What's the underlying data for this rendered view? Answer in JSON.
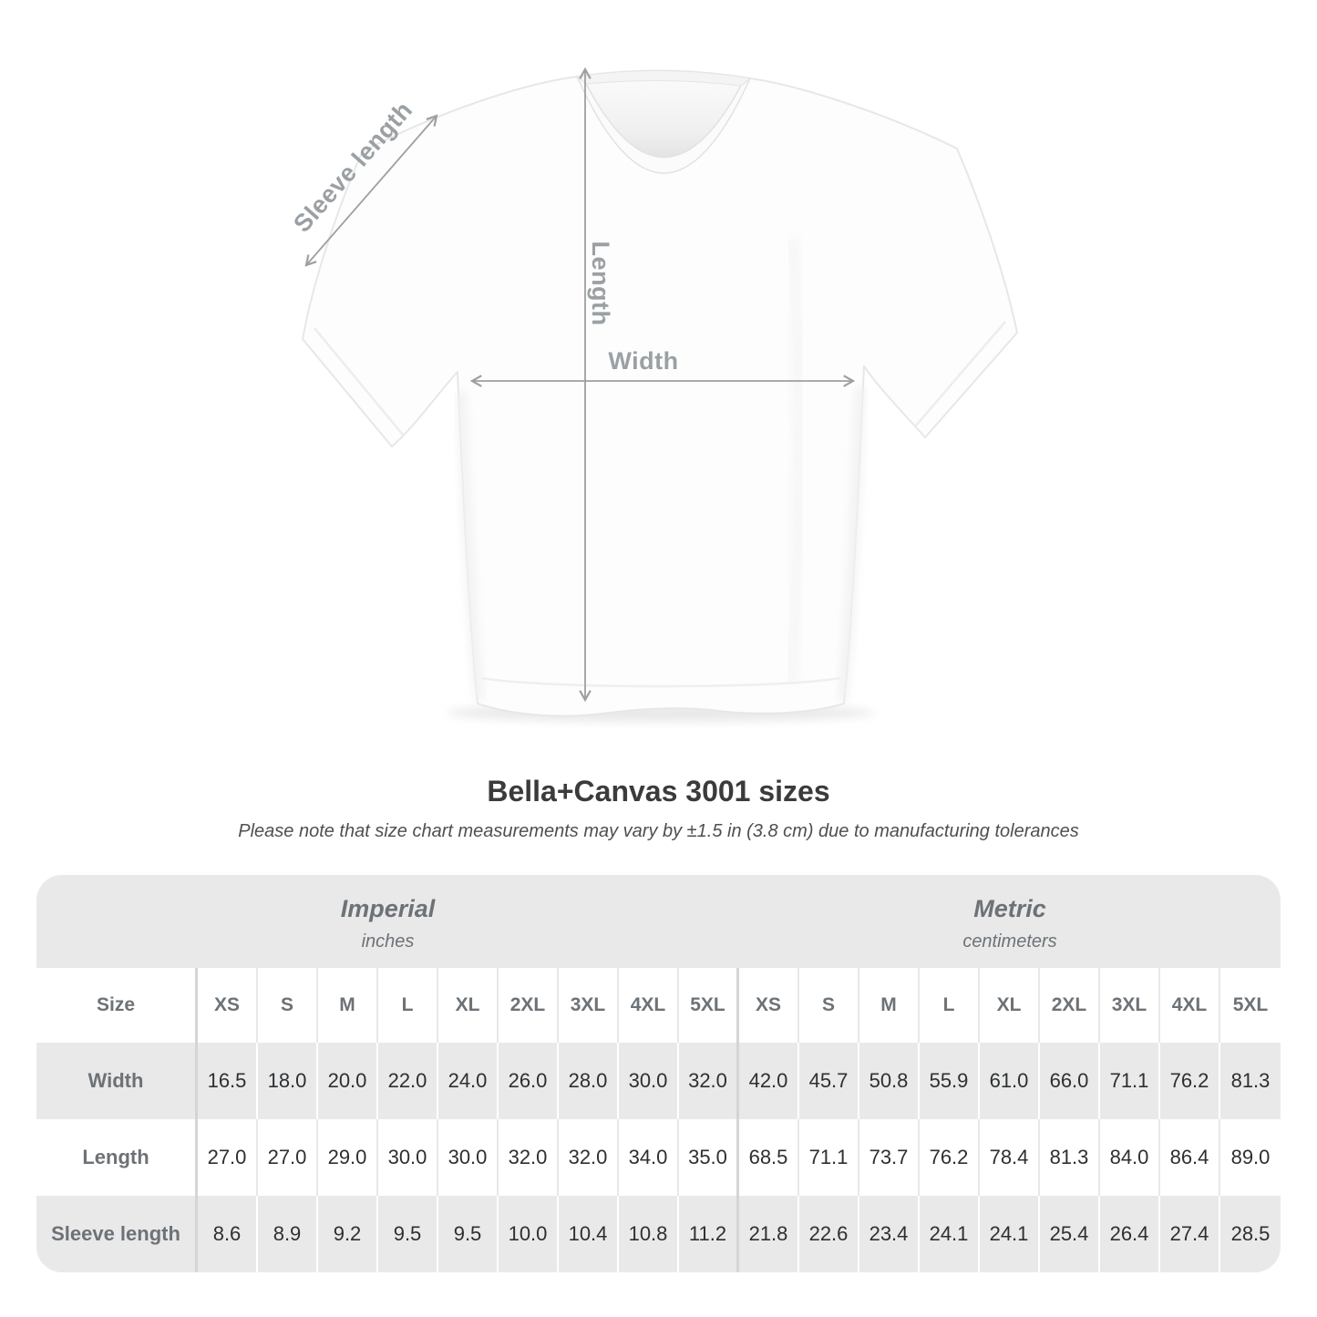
{
  "diagram": {
    "sleeve_label": "Sleeve length",
    "length_label": "Length",
    "width_label": "Width"
  },
  "heading": {
    "title": "Bella+Canvas 3001 sizes",
    "note": "Please note that size chart measurements may vary by ±1.5 in (3.8 cm) due to manufacturing tolerances"
  },
  "table": {
    "size_header": "Size",
    "groups": [
      {
        "label": "Imperial",
        "unit": "inches"
      },
      {
        "label": "Metric",
        "unit": "centimeters"
      }
    ],
    "sizes": [
      "XS",
      "S",
      "M",
      "L",
      "XL",
      "2XL",
      "3XL",
      "4XL",
      "5XL"
    ],
    "rows": [
      {
        "label": "Width",
        "imperial": [
          "16.5",
          "18.0",
          "20.0",
          "22.0",
          "24.0",
          "26.0",
          "28.0",
          "30.0",
          "32.0"
        ],
        "metric": [
          "42.0",
          "45.7",
          "50.8",
          "55.9",
          "61.0",
          "66.0",
          "71.1",
          "76.2",
          "81.3"
        ]
      },
      {
        "label": "Length",
        "imperial": [
          "27.0",
          "27.0",
          "29.0",
          "30.0",
          "30.0",
          "32.0",
          "32.0",
          "34.0",
          "35.0"
        ],
        "metric": [
          "68.5",
          "71.1",
          "73.7",
          "76.2",
          "78.4",
          "81.3",
          "84.0",
          "86.4",
          "89.0"
        ]
      },
      {
        "label": "Sleeve length",
        "imperial": [
          "8.6",
          "8.9",
          "9.2",
          "9.5",
          "9.5",
          "10.0",
          "10.4",
          "10.8",
          "11.2"
        ],
        "metric": [
          "21.8",
          "22.6",
          "23.4",
          "24.1",
          "24.1",
          "25.4",
          "26.4",
          "27.4",
          "28.5"
        ]
      }
    ]
  },
  "chart_data": {
    "type": "table",
    "title": "Bella+Canvas 3001 sizes",
    "note": "Please note that size chart measurements may vary by ±1.5 in (3.8 cm) due to manufacturing tolerances",
    "column_groups": [
      {
        "label": "Imperial",
        "unit": "inches",
        "span": 9
      },
      {
        "label": "Metric",
        "unit": "centimeters",
        "span": 9
      }
    ],
    "sizes": [
      "XS",
      "S",
      "M",
      "L",
      "XL",
      "2XL",
      "3XL",
      "4XL",
      "5XL"
    ],
    "measurements": [
      {
        "name": "Width",
        "imperial_in": [
          16.5,
          18.0,
          20.0,
          22.0,
          24.0,
          26.0,
          28.0,
          30.0,
          32.0
        ],
        "metric_cm": [
          42.0,
          45.7,
          50.8,
          55.9,
          61.0,
          66.0,
          71.1,
          76.2,
          81.3
        ]
      },
      {
        "name": "Length",
        "imperial_in": [
          27.0,
          27.0,
          29.0,
          30.0,
          30.0,
          32.0,
          32.0,
          34.0,
          35.0
        ],
        "metric_cm": [
          68.5,
          71.1,
          73.7,
          76.2,
          78.4,
          81.3,
          84.0,
          86.4,
          89.0
        ]
      },
      {
        "name": "Sleeve length",
        "imperial_in": [
          8.6,
          8.9,
          9.2,
          9.5,
          9.5,
          10.0,
          10.4,
          10.8,
          11.2
        ],
        "metric_cm": [
          21.8,
          22.6,
          23.4,
          24.1,
          24.1,
          25.4,
          26.4,
          27.4,
          28.5
        ]
      }
    ]
  },
  "colors": {
    "row_shade": "#e9e9e9",
    "group_divider": "#d5d5d5",
    "header_text": "#6d7277",
    "value_text": "#2d2f31",
    "diagram_label": "#9aa0a4",
    "arrow": "#9f9f9f",
    "title_text": "#3b3b3b"
  }
}
